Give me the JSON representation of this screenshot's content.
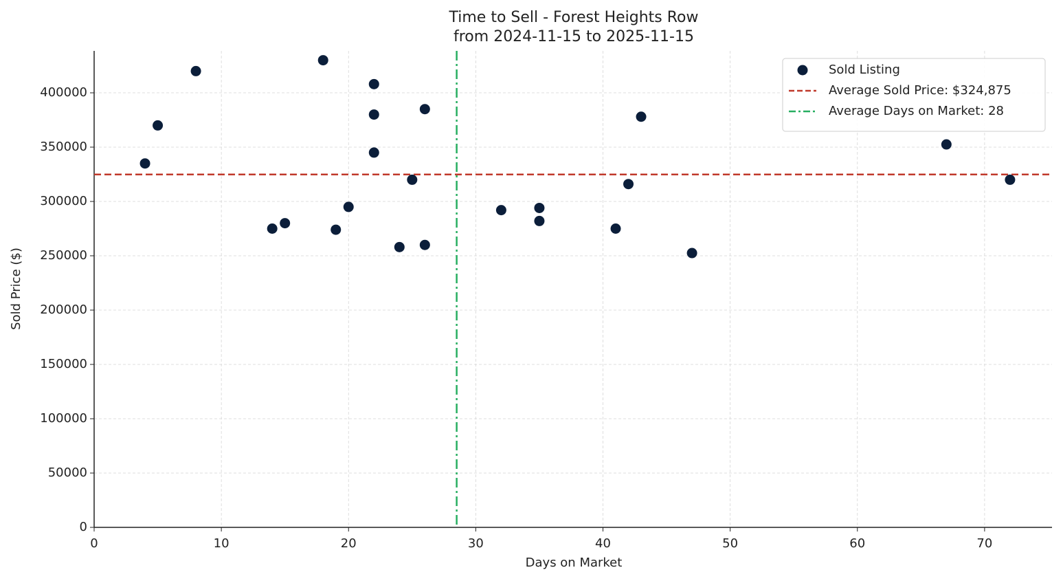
{
  "chart_data": {
    "type": "scatter",
    "title": "Time to Sell - Forest Heights Row",
    "subtitle": "from 2024-11-15 to 2025-11-15",
    "x_label": "Days on Market",
    "y_label": "Sold Price ($)",
    "series": [
      {
        "name": "Sold Listing",
        "color": "#0b1e3a",
        "x": [
          4,
          5,
          8,
          14,
          15,
          18,
          19,
          20,
          22,
          22,
          22,
          24,
          25,
          26,
          26,
          32,
          35,
          35,
          41,
          42,
          43,
          47,
          67,
          72
        ],
        "values": [
          335000,
          370000,
          420000,
          275000,
          280000,
          430000,
          274000,
          295000,
          408000,
          380000,
          345000,
          258000,
          320000,
          385000,
          260000,
          292000,
          294000,
          282000,
          275000,
          316000,
          378000,
          252500,
          352500,
          320000
        ]
      }
    ],
    "reference_lines": [
      {
        "axis": "y",
        "value": 324875,
        "label": "Average Sold Price: $324,875",
        "color": "#c0392b",
        "style": "dashed"
      },
      {
        "axis": "x",
        "value": 28.5,
        "label": "Average Days on Market: 28",
        "color": "#27ae60",
        "style": "dashdot"
      }
    ],
    "xlim": [
      0,
      75.3
    ],
    "xticks": [
      0,
      10,
      20,
      30,
      40,
      50,
      60,
      70
    ],
    "ylim": [
      0,
      438600
    ],
    "yticks": [
      0,
      50000,
      100000,
      150000,
      200000,
      250000,
      300000,
      350000,
      400000
    ],
    "grid": true,
    "legend": "upper right"
  }
}
